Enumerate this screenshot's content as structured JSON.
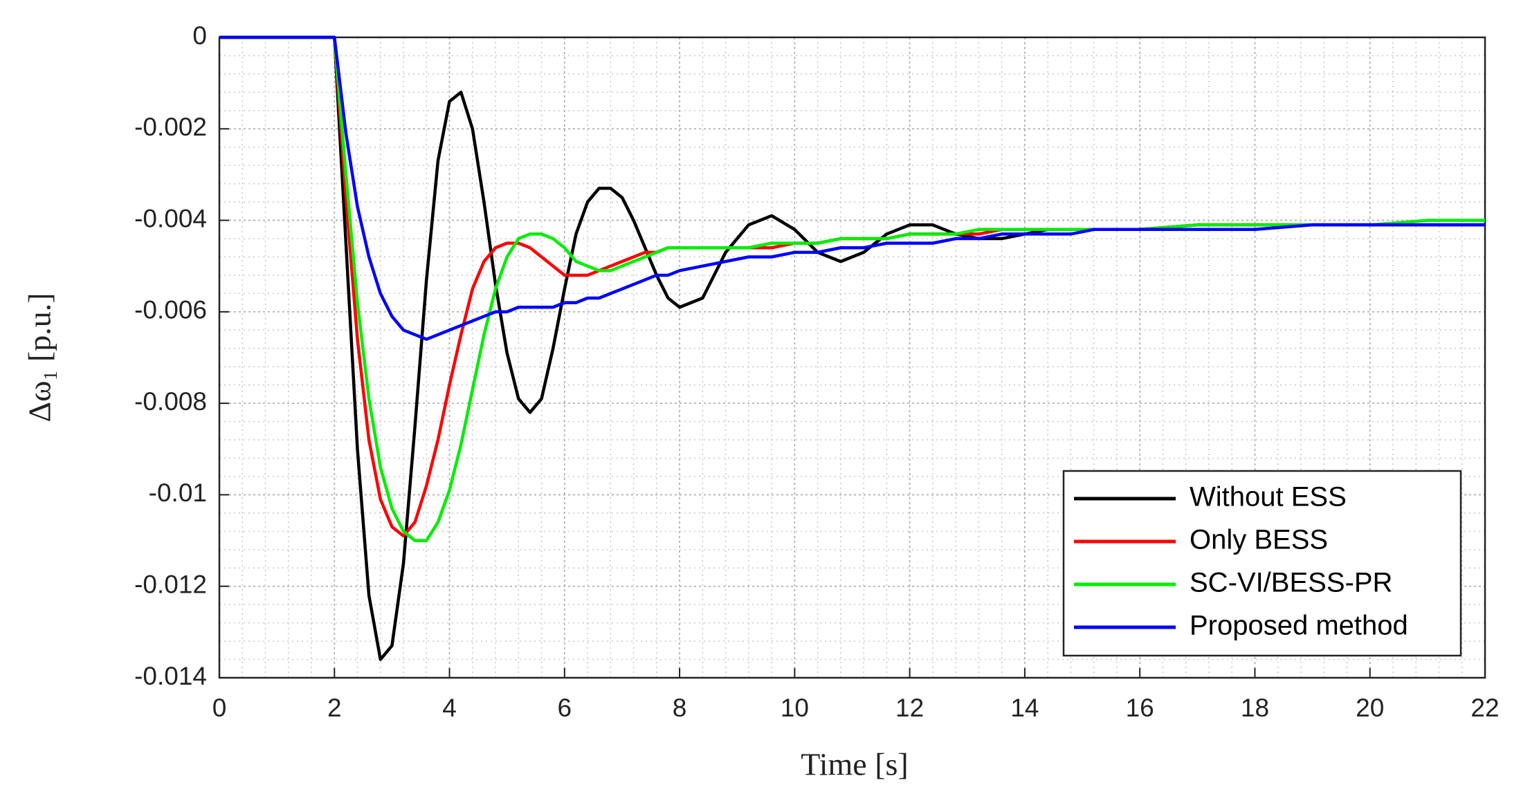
{
  "chart_data": {
    "type": "line",
    "xlabel": "Time [s]",
    "ylabel": "Δω₁ [p.u.]",
    "x": [
      0,
      2,
      2.2,
      2.4,
      2.6,
      2.8,
      3,
      3.2,
      3.4,
      3.6,
      3.8,
      4,
      4.2,
      4.4,
      4.6,
      4.8,
      5,
      5.2,
      5.4,
      5.6,
      5.8,
      6,
      6.2,
      6.4,
      6.6,
      6.8,
      7,
      7.2,
      7.4,
      7.6,
      7.8,
      8,
      8.4,
      8.8,
      9.2,
      9.6,
      10,
      10.4,
      10.8,
      11.2,
      11.6,
      12,
      12.4,
      12.8,
      13.2,
      13.6,
      14,
      14.4,
      14.8,
      15.2,
      15.6,
      16,
      17,
      18,
      19,
      20,
      21,
      22
    ],
    "series": [
      {
        "name": "Without ESS",
        "color": "#000000",
        "values": [
          0,
          0,
          -0.0045,
          -0.009,
          -0.0122,
          -0.0136,
          -0.0133,
          -0.0115,
          -0.0085,
          -0.0053,
          -0.0027,
          -0.0014,
          -0.0012,
          -0.002,
          -0.0036,
          -0.0054,
          -0.0069,
          -0.0079,
          -0.0082,
          -0.0079,
          -0.0068,
          -0.0055,
          -0.0043,
          -0.0036,
          -0.0033,
          -0.0033,
          -0.0035,
          -0.004,
          -0.0046,
          -0.0052,
          -0.0057,
          -0.0059,
          -0.0057,
          -0.0047,
          -0.0041,
          -0.0039,
          -0.0042,
          -0.0047,
          -0.0049,
          -0.0047,
          -0.0043,
          -0.0041,
          -0.0041,
          -0.0043,
          -0.0044,
          -0.0044,
          -0.0043,
          -0.0042,
          -0.0042,
          -0.0042,
          -0.0042,
          -0.0042,
          -0.0041,
          -0.0041,
          -0.0041,
          -0.0041,
          -0.0041,
          -0.0041
        ]
      },
      {
        "name": "Only BESS",
        "color": "#ff0000",
        "values": [
          0,
          0,
          -0.0035,
          -0.0066,
          -0.0088,
          -0.0101,
          -0.0107,
          -0.0109,
          -0.0106,
          -0.0098,
          -0.0088,
          -0.0076,
          -0.0065,
          -0.0055,
          -0.0049,
          -0.0046,
          -0.0045,
          -0.0045,
          -0.0046,
          -0.0048,
          -0.005,
          -0.0052,
          -0.0052,
          -0.0052,
          -0.0051,
          -0.005,
          -0.0049,
          -0.0048,
          -0.0047,
          -0.0047,
          -0.0046,
          -0.0046,
          -0.0046,
          -0.0046,
          -0.0046,
          -0.0046,
          -0.0045,
          -0.0045,
          -0.0044,
          -0.0044,
          -0.0044,
          -0.0043,
          -0.0043,
          -0.0043,
          -0.0043,
          -0.0042,
          -0.0042,
          -0.0042,
          -0.0042,
          -0.0042,
          -0.0042,
          -0.0042,
          -0.0041,
          -0.0041,
          -0.0041,
          -0.0041,
          -0.0041,
          -0.0041
        ]
      },
      {
        "name": "SC-VI/BESS-PR",
        "color": "#00ee00",
        "values": [
          0,
          0,
          -0.003,
          -0.0058,
          -0.0079,
          -0.0094,
          -0.0103,
          -0.0108,
          -0.011,
          -0.011,
          -0.0106,
          -0.0099,
          -0.0089,
          -0.0077,
          -0.0065,
          -0.0055,
          -0.0048,
          -0.0044,
          -0.0043,
          -0.0043,
          -0.0044,
          -0.0046,
          -0.0049,
          -0.005,
          -0.0051,
          -0.0051,
          -0.005,
          -0.0049,
          -0.0048,
          -0.0047,
          -0.0046,
          -0.0046,
          -0.0046,
          -0.0046,
          -0.0046,
          -0.0045,
          -0.0045,
          -0.0045,
          -0.0044,
          -0.0044,
          -0.0044,
          -0.0043,
          -0.0043,
          -0.0043,
          -0.0042,
          -0.0042,
          -0.0042,
          -0.0042,
          -0.0042,
          -0.0042,
          -0.0042,
          -0.0042,
          -0.0041,
          -0.0041,
          -0.0041,
          -0.0041,
          -0.004,
          -0.004
        ]
      },
      {
        "name": "Proposed method",
        "color": "#0000ff",
        "values": [
          0,
          0,
          -0.0021,
          -0.0037,
          -0.0048,
          -0.0056,
          -0.0061,
          -0.0064,
          -0.0065,
          -0.0066,
          -0.0065,
          -0.0064,
          -0.0063,
          -0.0062,
          -0.0061,
          -0.006,
          -0.006,
          -0.0059,
          -0.0059,
          -0.0059,
          -0.0059,
          -0.0058,
          -0.0058,
          -0.0057,
          -0.0057,
          -0.0056,
          -0.0055,
          -0.0054,
          -0.0053,
          -0.0052,
          -0.0052,
          -0.0051,
          -0.005,
          -0.0049,
          -0.0048,
          -0.0048,
          -0.0047,
          -0.0047,
          -0.0046,
          -0.0046,
          -0.0045,
          -0.0045,
          -0.0045,
          -0.0044,
          -0.0044,
          -0.0043,
          -0.0043,
          -0.0043,
          -0.0043,
          -0.0042,
          -0.0042,
          -0.0042,
          -0.0042,
          -0.0042,
          -0.0041,
          -0.0041,
          -0.0041,
          -0.0041
        ]
      }
    ],
    "xlim": [
      0,
      22
    ],
    "xticks": [
      0,
      2,
      4,
      6,
      8,
      10,
      12,
      14,
      16,
      18,
      20,
      22
    ],
    "ylim": [
      -0.014,
      0
    ],
    "yticks": [
      0,
      -0.002,
      -0.004,
      -0.006,
      -0.008,
      -0.01,
      -0.012,
      -0.014
    ],
    "grid": true,
    "minor_grid": true,
    "legend": "lower right"
  }
}
